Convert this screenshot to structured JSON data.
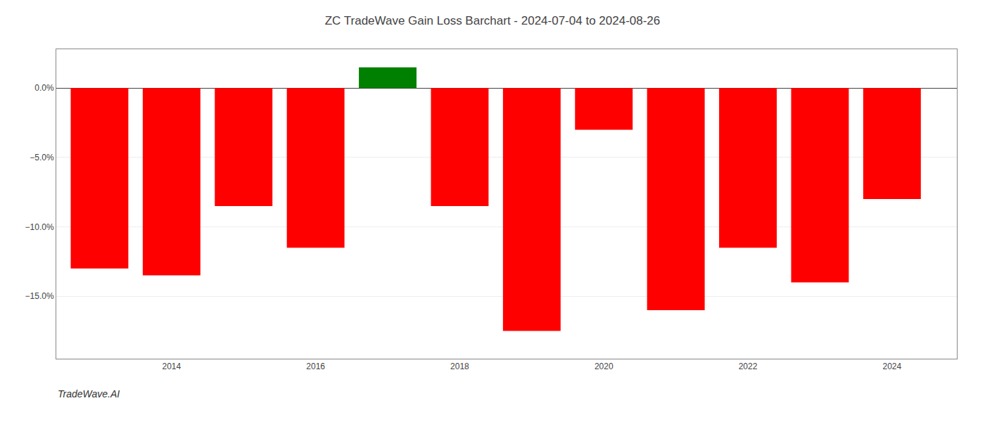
{
  "chart_data": {
    "type": "bar",
    "title": "ZC TradeWave Gain Loss Barchart - 2024-07-04 to 2024-08-26",
    "annotations": [
      "TradeWave.AI"
    ],
    "x": [
      2013,
      2014,
      2015,
      2016,
      2017,
      2018,
      2019,
      2020,
      2021,
      2022,
      2023,
      2024
    ],
    "values": [
      -13.0,
      -13.5,
      -8.5,
      -11.5,
      1.5,
      -8.5,
      -17.5,
      -3.0,
      -16.0,
      -11.5,
      -14.0,
      -8.0
    ],
    "colors": [
      "#ff0000",
      "#ff0000",
      "#ff0000",
      "#ff0000",
      "#008000",
      "#ff0000",
      "#ff0000",
      "#ff0000",
      "#ff0000",
      "#ff0000",
      "#ff0000",
      "#ff0000"
    ],
    "xlim": [
      2012.4,
      2024.9
    ],
    "xticks": [
      2014,
      2016,
      2018,
      2020,
      2022,
      2024
    ],
    "ylim": [
      -19.5,
      2.8
    ],
    "yticks": [
      {
        "value": 0.0,
        "label": "0.0%"
      },
      {
        "value": -5.0,
        "label": "−5.0%"
      },
      {
        "value": -10.0,
        "label": "−10.0%"
      },
      {
        "value": -15.0,
        "label": "−15.0%"
      }
    ],
    "grid": "y"
  }
}
